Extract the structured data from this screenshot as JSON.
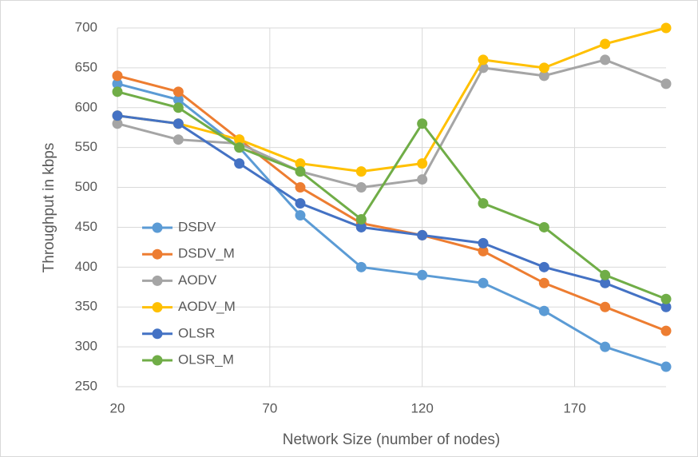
{
  "chart_data": {
    "type": "line",
    "x_label": "Network Size (number of nodes)",
    "y_label": "Throughput in kbps",
    "x": [
      20,
      40,
      60,
      80,
      100,
      120,
      140,
      160,
      180,
      200
    ],
    "series": [
      {
        "name": "DSDV",
        "color": "#5b9bd5",
        "values": [
          630,
          610,
          550,
          465,
          400,
          390,
          380,
          345,
          300,
          275
        ]
      },
      {
        "name": "DSDV_M",
        "color": "#ed7d31",
        "values": [
          640,
          620,
          560,
          500,
          455,
          440,
          420,
          380,
          350,
          320
        ]
      },
      {
        "name": "AODV",
        "color": "#a5a5a5",
        "values": [
          580,
          560,
          555,
          520,
          500,
          510,
          650,
          640,
          660,
          630
        ]
      },
      {
        "name": "AODV_M",
        "color": "#ffc000",
        "values": [
          590,
          580,
          560,
          530,
          520,
          530,
          660,
          650,
          680,
          700
        ]
      },
      {
        "name": "OLSR",
        "color": "#4472c4",
        "values": [
          590,
          580,
          530,
          480,
          450,
          440,
          430,
          400,
          380,
          350
        ]
      },
      {
        "name": "OLSR_M",
        "color": "#70ad47",
        "values": [
          620,
          600,
          550,
          520,
          460,
          580,
          480,
          450,
          390,
          360
        ]
      }
    ],
    "xlim": [
      20,
      200
    ],
    "xticks": [
      20,
      70,
      120,
      170
    ],
    "ylim": [
      250,
      700
    ],
    "yticks": [
      250,
      300,
      350,
      400,
      450,
      500,
      550,
      600,
      650,
      700
    ],
    "grid": true,
    "legend": "left"
  }
}
